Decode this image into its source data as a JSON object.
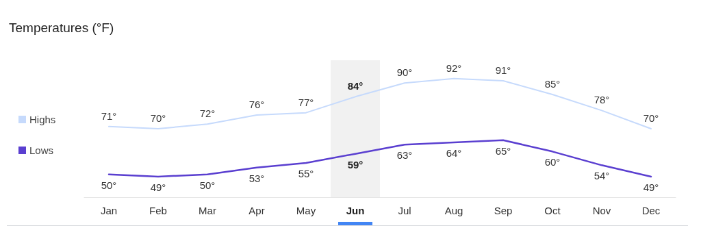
{
  "chart_data": {
    "type": "line",
    "title": "Temperatures (°F)",
    "categories": [
      "Jan",
      "Feb",
      "Mar",
      "Apr",
      "May",
      "Jun",
      "Jul",
      "Aug",
      "Sep",
      "Oct",
      "Nov",
      "Dec"
    ],
    "series": [
      {
        "name": "Highs",
        "color": "#c6dafc",
        "values": [
          71,
          70,
          72,
          76,
          77,
          84,
          90,
          92,
          91,
          85,
          78,
          70
        ],
        "value_labels": [
          "71°",
          "70°",
          "72°",
          "76°",
          "77°",
          "84°",
          "90°",
          "92°",
          "91°",
          "85°",
          "78°",
          "70°"
        ]
      },
      {
        "name": "Lows",
        "color": "#5a3fd0",
        "values": [
          50,
          49,
          50,
          53,
          55,
          59,
          63,
          64,
          65,
          60,
          54,
          49
        ],
        "value_labels": [
          "50°",
          "49°",
          "50°",
          "53°",
          "55°",
          "59°",
          "63°",
          "64°",
          "65°",
          "60°",
          "54°",
          "49°"
        ]
      }
    ],
    "bands": [
      {
        "axis": "x",
        "from": "Jun",
        "to": "Jun",
        "color": "#f1f1f1"
      }
    ],
    "legend": "left",
    "marker": "none",
    "grid": false
  }
}
